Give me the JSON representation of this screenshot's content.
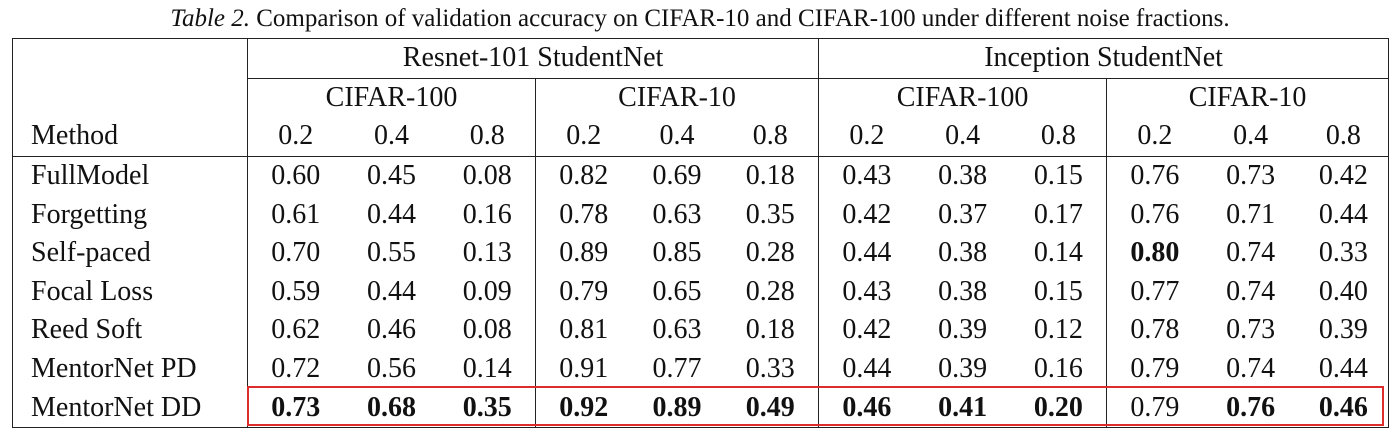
{
  "caption": {
    "label": "Table 2.",
    "text": "Comparison of validation accuracy on CIFAR-10 and CIFAR-100 under different noise fractions."
  },
  "header": {
    "group1": "Resnet-101 StudentNet",
    "group2": "Inception StudentNet",
    "sub": [
      "CIFAR-100",
      "CIFAR-10",
      "CIFAR-100",
      "CIFAR-10"
    ],
    "method": "Method",
    "fractions": [
      "0.2",
      "0.4",
      "0.8",
      "0.2",
      "0.4",
      "0.8",
      "0.2",
      "0.4",
      "0.8",
      "0.2",
      "0.4",
      "0.8"
    ]
  },
  "rows": [
    {
      "method": "FullModel",
      "values": [
        "0.60",
        "0.45",
        "0.08",
        "0.82",
        "0.69",
        "0.18",
        "0.43",
        "0.38",
        "0.15",
        "0.76",
        "0.73",
        "0.42"
      ],
      "bold": []
    },
    {
      "method": "Forgetting",
      "values": [
        "0.61",
        "0.44",
        "0.16",
        "0.78",
        "0.63",
        "0.35",
        "0.42",
        "0.37",
        "0.17",
        "0.76",
        "0.71",
        "0.44"
      ],
      "bold": []
    },
    {
      "method": "Self-paced",
      "values": [
        "0.70",
        "0.55",
        "0.13",
        "0.89",
        "0.85",
        "0.28",
        "0.44",
        "0.38",
        "0.14",
        "0.80",
        "0.74",
        "0.33"
      ],
      "bold": [
        9
      ]
    },
    {
      "method": "Focal Loss",
      "values": [
        "0.59",
        "0.44",
        "0.09",
        "0.79",
        "0.65",
        "0.28",
        "0.43",
        "0.38",
        "0.15",
        "0.77",
        "0.74",
        "0.40"
      ],
      "bold": []
    },
    {
      "method": "Reed Soft",
      "values": [
        "0.62",
        "0.46",
        "0.08",
        "0.81",
        "0.63",
        "0.18",
        "0.42",
        "0.39",
        "0.12",
        "0.78",
        "0.73",
        "0.39"
      ],
      "bold": []
    },
    {
      "method": "MentorNet PD",
      "values": [
        "0.72",
        "0.56",
        "0.14",
        "0.91",
        "0.77",
        "0.33",
        "0.44",
        "0.39",
        "0.16",
        "0.79",
        "0.74",
        "0.44"
      ],
      "bold": []
    },
    {
      "method": "MentorNet DD",
      "values": [
        "0.73",
        "0.68",
        "0.35",
        "0.92",
        "0.89",
        "0.49",
        "0.46",
        "0.41",
        "0.20",
        "0.79",
        "0.76",
        "0.46"
      ],
      "bold": [
        0,
        1,
        2,
        3,
        4,
        5,
        6,
        7,
        8,
        10,
        11
      ]
    }
  ],
  "highlight_color": "#dd2c2c"
}
